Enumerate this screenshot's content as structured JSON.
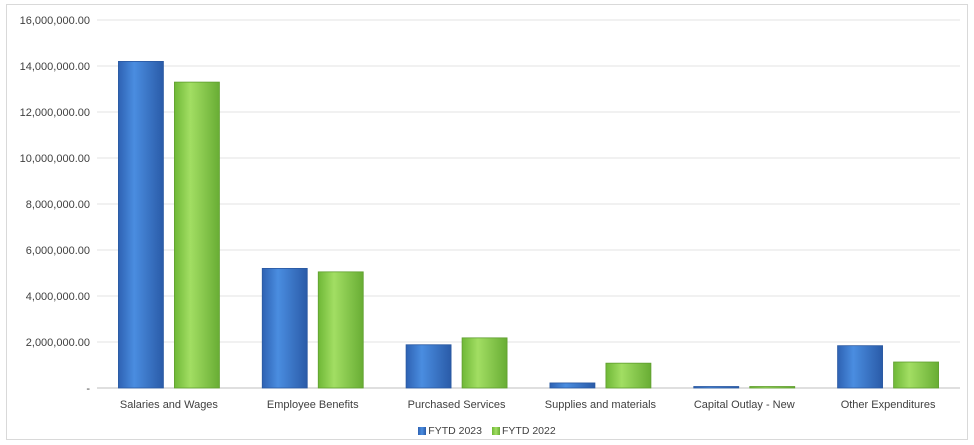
{
  "chart_data": {
    "type": "bar",
    "title": "",
    "xlabel": "",
    "ylabel": "",
    "ylim": [
      0,
      16000000
    ],
    "yticks": [
      0,
      2000000,
      4000000,
      6000000,
      8000000,
      10000000,
      12000000,
      14000000,
      16000000
    ],
    "ytick_labels": [
      "-",
      "2,000,000.00",
      "4,000,000.00",
      "6,000,000.00",
      "8,000,000.00",
      "10,000,000.00",
      "12,000,000.00",
      "14,000,000.00",
      "16,000,000.00"
    ],
    "categories": [
      "Salaries and Wages",
      "Employee Benefits",
      "Purchased Services",
      "Supplies and materials",
      "Capital Outlay - New",
      "Other Expenditures"
    ],
    "series": [
      {
        "name": "FYTD 2023",
        "color": "#3a7bd5",
        "values": [
          14200000,
          5200000,
          1880000,
          220000,
          25000,
          1840000
        ]
      },
      {
        "name": "FYTD 2022",
        "color": "#8fd14f",
        "values": [
          13300000,
          5050000,
          2180000,
          1080000,
          20000,
          1130000
        ]
      }
    ],
    "grid": true,
    "legend_position": "bottom-center"
  }
}
